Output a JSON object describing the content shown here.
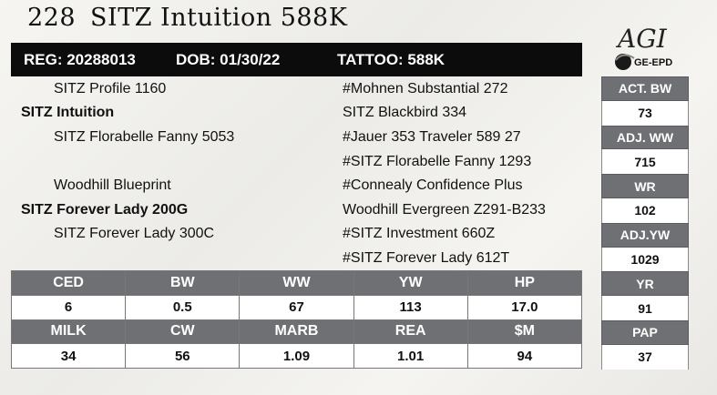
{
  "header": {
    "lot_number": "228",
    "animal_name": "SITZ Intuition 588K"
  },
  "registration": {
    "reg": "REG: 20288013",
    "dob": "DOB: 01/30/22",
    "tattoo": "TATTOO: 588K"
  },
  "logo": {
    "text_main": "AGI",
    "text_sub": "GE-EPD"
  },
  "pedigree": {
    "sire_sire": "SITZ Profile 1160",
    "sire": "SITZ Intuition",
    "sire_dam": "SITZ Florabelle Fanny 5053",
    "dam_sire": "Woodhill Blueprint",
    "dam": "SITZ Forever Lady 200G",
    "dam_dam": "SITZ Forever Lady 300C",
    "ancestors": [
      "#Mohnen Substantial 272",
      "SITZ Blackbird 334",
      "#Jauer 353 Traveler 589 27",
      "#SITZ Florabelle Fanny 1293",
      "#Connealy Confidence Plus",
      "Woodhill Evergreen Z291-B233",
      "#SITZ Investment 660Z",
      "#SITZ Forever Lady 612T"
    ]
  },
  "weights": [
    {
      "label": "ACT. BW",
      "value": "73"
    },
    {
      "label": "ADJ. WW",
      "value": "715"
    },
    {
      "label": "WR",
      "value": "102"
    },
    {
      "label": "ADJ.YW",
      "value": "1029"
    },
    {
      "label": "YR",
      "value": "91"
    },
    {
      "label": "PAP",
      "value": "37"
    }
  ],
  "epd_row1": {
    "headers": [
      "CED",
      "BW",
      "WW",
      "YW",
      "HP"
    ],
    "values": [
      "6",
      "0.5",
      "67",
      "113",
      "17.0"
    ]
  },
  "epd_row2": {
    "headers": [
      "MILK",
      "CW",
      "MARB",
      "REA",
      "$M"
    ],
    "values": [
      "34",
      "56",
      "1.09",
      "1.01",
      "94"
    ]
  }
}
